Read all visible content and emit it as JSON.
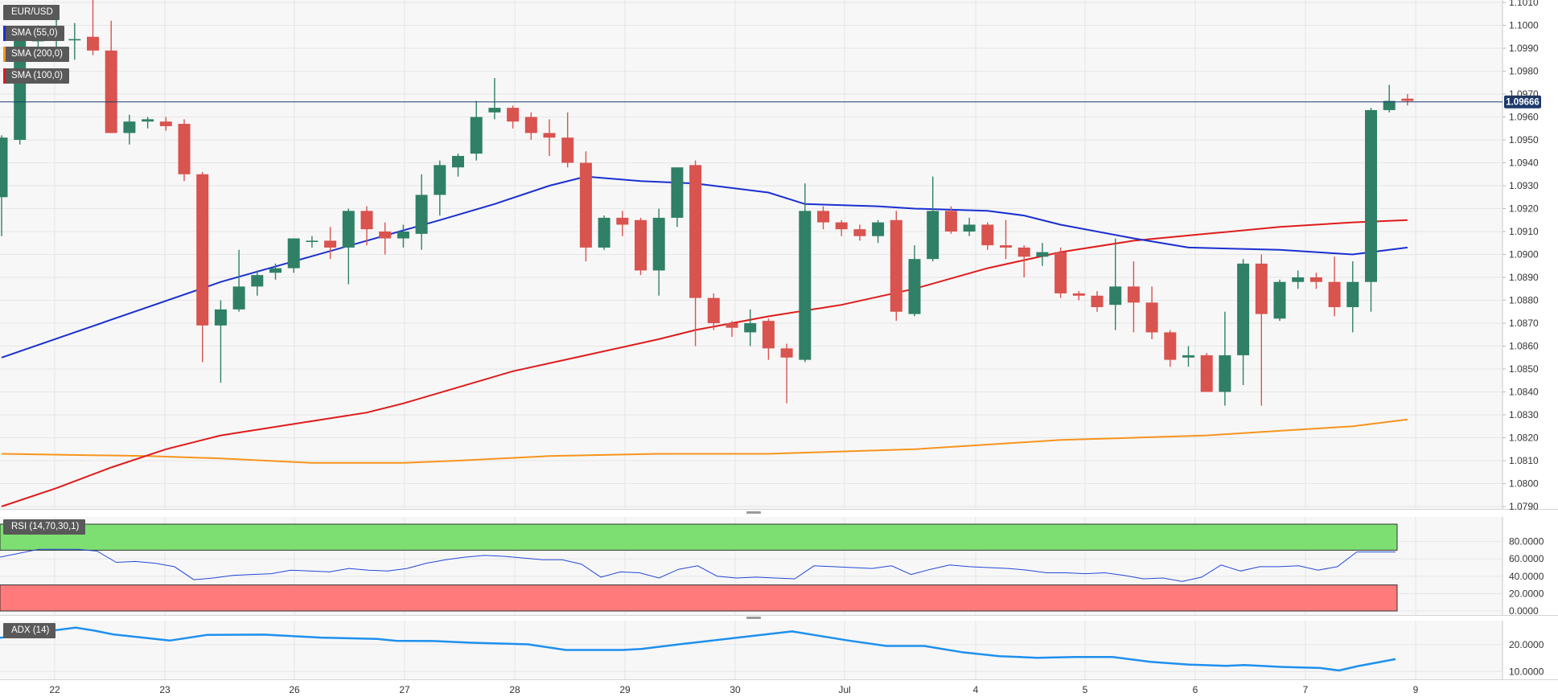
{
  "legends": {
    "symbol": "EUR/USD",
    "sma55": "SMA (55,0)",
    "sma200": "SMA (200,0)",
    "sma100": "SMA (100,0)",
    "rsi": "RSI (14,70,30,1)",
    "adx": "ADX (14)"
  },
  "colors": {
    "up": "#2f8066",
    "down": "#d9534f",
    "sma55": "#1a2fd1",
    "sma100": "#e01b1b",
    "sma200": "#f7941d",
    "rsi_line": "#2448d8",
    "rsi_overbought": "#7ddf72",
    "rsi_oversold": "#ff7b7b",
    "adx_line": "#1e90ee",
    "price_line": "#1e3a6b",
    "price_badge": "#1e3a6b"
  },
  "current_price_label": "1.09666",
  "chart_data": [
    {
      "type": "candlestick",
      "title": "EUR/USD",
      "ylim": [
        1.079,
        1.101
      ],
      "ytick_labels": [
        "1.0790",
        "1.0800",
        "1.0810",
        "1.0820",
        "1.0830",
        "1.0840",
        "1.0850",
        "1.0860",
        "1.0870",
        "1.0880",
        "1.0890",
        "1.0900",
        "1.0910",
        "1.0920",
        "1.0930",
        "1.0940",
        "1.0950",
        "1.0960",
        "1.0970",
        "1.0980",
        "1.0990",
        "1.1000",
        "1.1010"
      ],
      "x_labels": [
        "22",
        "23",
        "26",
        "27",
        "28",
        "29",
        "30",
        "Jul",
        "4",
        "5",
        "6",
        "7",
        "9"
      ],
      "current_price": 1.09666,
      "candles": [
        {
          "o": 1.0925,
          "h": 1.0952,
          "l": 1.0908,
          "c": 1.0951
        },
        {
          "o": 1.095,
          "h": 1.0998,
          "l": 1.0948,
          "c": 1.0997
        },
        {
          "o": 1.0993,
          "h": 1.1,
          "l": 1.0986,
          "c": 1.0996
        },
        {
          "o": 1.0994,
          "h": 1.1003,
          "l": 1.0988,
          "c": 1.0995
        },
        {
          "o": 1.0994,
          "h": 1.1001,
          "l": 1.0985,
          "c": 1.0994
        },
        {
          "o": 1.0995,
          "h": 1.1012,
          "l": 1.0987,
          "c": 1.0989
        },
        {
          "o": 1.0989,
          "h": 1.1002,
          "l": 1.0953,
          "c": 1.0953
        },
        {
          "o": 1.0953,
          "h": 1.0961,
          "l": 1.0948,
          "c": 1.0958
        },
        {
          "o": 1.0958,
          "h": 1.096,
          "l": 1.0955,
          "c": 1.0959
        },
        {
          "o": 1.0958,
          "h": 1.096,
          "l": 1.0954,
          "c": 1.0956
        },
        {
          "o": 1.0957,
          "h": 1.0959,
          "l": 1.0932,
          "c": 1.0935
        },
        {
          "o": 1.0935,
          "h": 1.0936,
          "l": 1.0853,
          "c": 1.0869
        },
        {
          "o": 1.0869,
          "h": 1.088,
          "l": 1.0844,
          "c": 1.0876
        },
        {
          "o": 1.0876,
          "h": 1.0902,
          "l": 1.0875,
          "c": 1.0886
        },
        {
          "o": 1.0886,
          "h": 1.0893,
          "l": 1.0882,
          "c": 1.0891
        },
        {
          "o": 1.0892,
          "h": 1.0896,
          "l": 1.0889,
          "c": 1.0894
        },
        {
          "o": 1.0894,
          "h": 1.0907,
          "l": 1.0892,
          "c": 1.0907
        },
        {
          "o": 1.0906,
          "h": 1.0908,
          "l": 1.0903,
          "c": 1.0906
        },
        {
          "o": 1.0906,
          "h": 1.0912,
          "l": 1.0898,
          "c": 1.0903
        },
        {
          "o": 1.0903,
          "h": 1.092,
          "l": 1.0887,
          "c": 1.0919
        },
        {
          "o": 1.0919,
          "h": 1.0921,
          "l": 1.0904,
          "c": 1.0911
        },
        {
          "o": 1.091,
          "h": 1.0914,
          "l": 1.09,
          "c": 1.0907
        },
        {
          "o": 1.0907,
          "h": 1.0913,
          "l": 1.0903,
          "c": 1.091
        },
        {
          "o": 1.0909,
          "h": 1.0935,
          "l": 1.0902,
          "c": 1.0926
        },
        {
          "o": 1.0926,
          "h": 1.0941,
          "l": 1.0917,
          "c": 1.0939
        },
        {
          "o": 1.0938,
          "h": 1.0944,
          "l": 1.0934,
          "c": 1.0943
        },
        {
          "o": 1.0944,
          "h": 1.0967,
          "l": 1.0941,
          "c": 1.096
        },
        {
          "o": 1.0962,
          "h": 1.0977,
          "l": 1.0959,
          "c": 1.0964
        },
        {
          "o": 1.0964,
          "h": 1.0965,
          "l": 1.0955,
          "c": 1.0958
        },
        {
          "o": 1.096,
          "h": 1.0962,
          "l": 1.095,
          "c": 1.0953
        },
        {
          "o": 1.0953,
          "h": 1.0959,
          "l": 1.0943,
          "c": 1.0951
        },
        {
          "o": 1.0951,
          "h": 1.0962,
          "l": 1.0938,
          "c": 1.094
        },
        {
          "o": 1.094,
          "h": 1.0945,
          "l": 1.0897,
          "c": 1.0903
        },
        {
          "o": 1.0903,
          "h": 1.0917,
          "l": 1.0902,
          "c": 1.0916
        },
        {
          "o": 1.0916,
          "h": 1.0919,
          "l": 1.0908,
          "c": 1.0913
        },
        {
          "o": 1.0915,
          "h": 1.0916,
          "l": 1.0891,
          "c": 1.0893
        },
        {
          "o": 1.0893,
          "h": 1.092,
          "l": 1.0882,
          "c": 1.0916
        },
        {
          "o": 1.0916,
          "h": 1.0938,
          "l": 1.0912,
          "c": 1.0938
        },
        {
          "o": 1.0939,
          "h": 1.0941,
          "l": 1.086,
          "c": 1.0881
        },
        {
          "o": 1.0881,
          "h": 1.0883,
          "l": 1.0867,
          "c": 1.087
        },
        {
          "o": 1.087,
          "h": 1.0871,
          "l": 1.0864,
          "c": 1.0868
        },
        {
          "o": 1.0866,
          "h": 1.0876,
          "l": 1.086,
          "c": 1.087
        },
        {
          "o": 1.0871,
          "h": 1.0872,
          "l": 1.0854,
          "c": 1.0859
        },
        {
          "o": 1.0859,
          "h": 1.0861,
          "l": 1.0835,
          "c": 1.0855
        },
        {
          "o": 1.0854,
          "h": 1.0931,
          "l": 1.0853,
          "c": 1.0919
        },
        {
          "o": 1.0919,
          "h": 1.0921,
          "l": 1.0911,
          "c": 1.0914
        },
        {
          "o": 1.0914,
          "h": 1.0915,
          "l": 1.0908,
          "c": 1.0911
        },
        {
          "o": 1.0911,
          "h": 1.0913,
          "l": 1.0906,
          "c": 1.0908
        },
        {
          "o": 1.0908,
          "h": 1.0915,
          "l": 1.0905,
          "c": 1.0914
        },
        {
          "o": 1.0915,
          "h": 1.0919,
          "l": 1.0871,
          "c": 1.0875
        },
        {
          "o": 1.0874,
          "h": 1.0904,
          "l": 1.0873,
          "c": 1.0898
        },
        {
          "o": 1.0898,
          "h": 1.0934,
          "l": 1.0897,
          "c": 1.0919
        },
        {
          "o": 1.0919,
          "h": 1.0921,
          "l": 1.0909,
          "c": 1.091
        },
        {
          "o": 1.091,
          "h": 1.0916,
          "l": 1.0908,
          "c": 1.0913
        },
        {
          "o": 1.0913,
          "h": 1.0914,
          "l": 1.0902,
          "c": 1.0904
        },
        {
          "o": 1.0904,
          "h": 1.0915,
          "l": 1.0898,
          "c": 1.0903
        },
        {
          "o": 1.0903,
          "h": 1.0904,
          "l": 1.089,
          "c": 1.0899
        },
        {
          "o": 1.0899,
          "h": 1.0905,
          "l": 1.0895,
          "c": 1.0901
        },
        {
          "o": 1.0901,
          "h": 1.0903,
          "l": 1.0881,
          "c": 1.0883
        },
        {
          "o": 1.0883,
          "h": 1.0884,
          "l": 1.088,
          "c": 1.0882
        },
        {
          "o": 1.0882,
          "h": 1.0884,
          "l": 1.0875,
          "c": 1.0877
        },
        {
          "o": 1.0878,
          "h": 1.0907,
          "l": 1.0867,
          "c": 1.0886
        },
        {
          "o": 1.0886,
          "h": 1.0897,
          "l": 1.0866,
          "c": 1.0879
        },
        {
          "o": 1.0879,
          "h": 1.0886,
          "l": 1.0863,
          "c": 1.0866
        },
        {
          "o": 1.0866,
          "h": 1.0867,
          "l": 1.0851,
          "c": 1.0854
        },
        {
          "o": 1.0855,
          "h": 1.086,
          "l": 1.0851,
          "c": 1.0856
        },
        {
          "o": 1.0856,
          "h": 1.0857,
          "l": 1.084,
          "c": 1.084
        },
        {
          "o": 1.084,
          "h": 1.0875,
          "l": 1.0834,
          "c": 1.0856
        },
        {
          "o": 1.0856,
          "h": 1.0898,
          "l": 1.0843,
          "c": 1.0896
        },
        {
          "o": 1.0896,
          "h": 1.09,
          "l": 1.0834,
          "c": 1.0874
        },
        {
          "o": 1.0872,
          "h": 1.0889,
          "l": 1.0871,
          "c": 1.0888
        },
        {
          "o": 1.0888,
          "h": 1.0893,
          "l": 1.0885,
          "c": 1.089
        },
        {
          "o": 1.089,
          "h": 1.0892,
          "l": 1.0885,
          "c": 1.0888
        },
        {
          "o": 1.0888,
          "h": 1.0899,
          "l": 1.0873,
          "c": 1.0877
        },
        {
          "o": 1.0877,
          "h": 1.0897,
          "l": 1.0866,
          "c": 1.0888
        },
        {
          "o": 1.0888,
          "h": 1.0964,
          "l": 1.0875,
          "c": 1.0963
        },
        {
          "o": 1.0963,
          "h": 1.0974,
          "l": 1.0962,
          "c": 1.0967
        },
        {
          "o": 1.0968,
          "h": 1.097,
          "l": 1.0965,
          "c": 1.0967
        }
      ],
      "sma55": [
        [
          0,
          1.0855
        ],
        [
          4,
          1.0866
        ],
        [
          8,
          1.0877
        ],
        [
          12,
          1.0888
        ],
        [
          16,
          1.0897
        ],
        [
          20,
          1.0906
        ],
        [
          24,
          1.0915
        ],
        [
          27,
          1.0922
        ],
        [
          30,
          1.093
        ],
        [
          32,
          1.0934
        ],
        [
          35,
          1.0932
        ],
        [
          38,
          1.0931
        ],
        [
          42,
          1.0927
        ],
        [
          44,
          1.0922
        ],
        [
          48,
          1.0921
        ],
        [
          50,
          1.092
        ],
        [
          54,
          1.0919
        ],
        [
          56,
          1.0917
        ],
        [
          58,
          1.0913
        ],
        [
          62,
          1.0907
        ],
        [
          65,
          1.0903
        ],
        [
          70,
          1.0902
        ],
        [
          74,
          1.09
        ],
        [
          77,
          1.0903
        ]
      ],
      "sma100": [
        [
          0,
          1.079
        ],
        [
          3,
          1.0798
        ],
        [
          6,
          1.0807
        ],
        [
          9,
          1.0815
        ],
        [
          12,
          1.0821
        ],
        [
          16,
          1.0826
        ],
        [
          20,
          1.0831
        ],
        [
          22,
          1.0835
        ],
        [
          25,
          1.0842
        ],
        [
          28,
          1.0849
        ],
        [
          32,
          1.0856
        ],
        [
          36,
          1.0863
        ],
        [
          38,
          1.0867
        ],
        [
          42,
          1.0873
        ],
        [
          46,
          1.0878
        ],
        [
          50,
          1.0885
        ],
        [
          54,
          1.0894
        ],
        [
          58,
          1.0901
        ],
        [
          62,
          1.0906
        ],
        [
          66,
          1.0909
        ],
        [
          70,
          1.0912
        ],
        [
          74,
          1.0914
        ],
        [
          77,
          1.0915
        ]
      ],
      "sma200": [
        [
          0,
          1.0813
        ],
        [
          8,
          1.0812
        ],
        [
          12,
          1.0811
        ],
        [
          17,
          1.0809
        ],
        [
          22,
          1.0809
        ],
        [
          25,
          1.081
        ],
        [
          30,
          1.0812
        ],
        [
          36,
          1.0813
        ],
        [
          42,
          1.0813
        ],
        [
          46,
          1.0814
        ],
        [
          50,
          1.0815
        ],
        [
          54,
          1.0817
        ],
        [
          58,
          1.0819
        ],
        [
          62,
          1.082
        ],
        [
          66,
          1.0821
        ],
        [
          70,
          1.0823
        ],
        [
          74,
          1.0825
        ],
        [
          77,
          1.0828
        ]
      ]
    },
    {
      "type": "line",
      "title": "RSI (14,70,30,1)",
      "ylim": [
        0,
        100
      ],
      "ytick_labels": [
        "0.0000",
        "20.0000",
        "40.0000",
        "60.0000",
        "80.0000"
      ],
      "overbought": 70,
      "oversold": 30,
      "points": [
        [
          0,
          62
        ],
        [
          2,
          71
        ],
        [
          4,
          71
        ],
        [
          5,
          69
        ],
        [
          6,
          56
        ],
        [
          7,
          57
        ],
        [
          8,
          55
        ],
        [
          9,
          51
        ],
        [
          10,
          36
        ],
        [
          11,
          38
        ],
        [
          12,
          41
        ],
        [
          13,
          42
        ],
        [
          14,
          43
        ],
        [
          15,
          47
        ],
        [
          16,
          46
        ],
        [
          17,
          45
        ],
        [
          18,
          49
        ],
        [
          19,
          47
        ],
        [
          20,
          46
        ],
        [
          21,
          49
        ],
        [
          22,
          55
        ],
        [
          23,
          59
        ],
        [
          24,
          62
        ],
        [
          25,
          64
        ],
        [
          26,
          63
        ],
        [
          27,
          61
        ],
        [
          28,
          59
        ],
        [
          29,
          59
        ],
        [
          30,
          54
        ],
        [
          31,
          39
        ],
        [
          32,
          45
        ],
        [
          33,
          44
        ],
        [
          34,
          38
        ],
        [
          35,
          48
        ],
        [
          36,
          52
        ],
        [
          37,
          40
        ],
        [
          38,
          38
        ],
        [
          39,
          39
        ],
        [
          40,
          38
        ],
        [
          41,
          37
        ],
        [
          42,
          52
        ],
        [
          43,
          51
        ],
        [
          44,
          50
        ],
        [
          45,
          49
        ],
        [
          46,
          52
        ],
        [
          47,
          42
        ],
        [
          48,
          48
        ],
        [
          49,
          53
        ],
        [
          50,
          51
        ],
        [
          51,
          50
        ],
        [
          52,
          49
        ],
        [
          53,
          47
        ],
        [
          54,
          44
        ],
        [
          55,
          44
        ],
        [
          56,
          43
        ],
        [
          57,
          44
        ],
        [
          58,
          41
        ],
        [
          59,
          37
        ],
        [
          60,
          38
        ],
        [
          61,
          34
        ],
        [
          62,
          39
        ],
        [
          63,
          53
        ],
        [
          64,
          46
        ],
        [
          65,
          51
        ],
        [
          66,
          51
        ],
        [
          67,
          52
        ],
        [
          68,
          47
        ],
        [
          69,
          51
        ],
        [
          70,
          68
        ],
        [
          71,
          68
        ],
        [
          72,
          68
        ]
      ]
    },
    {
      "type": "line",
      "title": "ADX (14)",
      "ylim": [
        8,
        28
      ],
      "ytick_labels": [
        "10.0000",
        "20.0000"
      ],
      "points": [
        [
          0,
          22.5
        ],
        [
          2,
          24.5
        ],
        [
          4,
          26.3
        ],
        [
          5,
          25.2
        ],
        [
          6,
          23.8
        ],
        [
          9,
          21.5
        ],
        [
          11,
          23.6
        ],
        [
          14,
          23.7
        ],
        [
          17,
          22.6
        ],
        [
          20,
          22.1
        ],
        [
          21,
          21.4
        ],
        [
          23,
          21.3
        ],
        [
          25,
          20.7
        ],
        [
          28,
          20.1
        ],
        [
          30,
          18.0
        ],
        [
          33,
          18.0
        ],
        [
          34,
          18.4
        ],
        [
          36,
          20.1
        ],
        [
          40,
          23.3
        ],
        [
          42,
          24.9
        ],
        [
          45,
          21.5
        ],
        [
          47,
          19.5
        ],
        [
          49,
          19.5
        ],
        [
          51,
          17.2
        ],
        [
          53,
          15.7
        ],
        [
          55,
          15.1
        ],
        [
          57,
          15.4
        ],
        [
          59,
          15.4
        ],
        [
          61,
          13.6
        ],
        [
          63,
          12.6
        ],
        [
          65,
          12.1
        ],
        [
          66,
          12.4
        ],
        [
          68,
          11.7
        ],
        [
          70,
          11.3
        ],
        [
          71,
          10.4
        ],
        [
          72,
          12.0
        ],
        [
          74,
          14.6
        ]
      ]
    }
  ]
}
